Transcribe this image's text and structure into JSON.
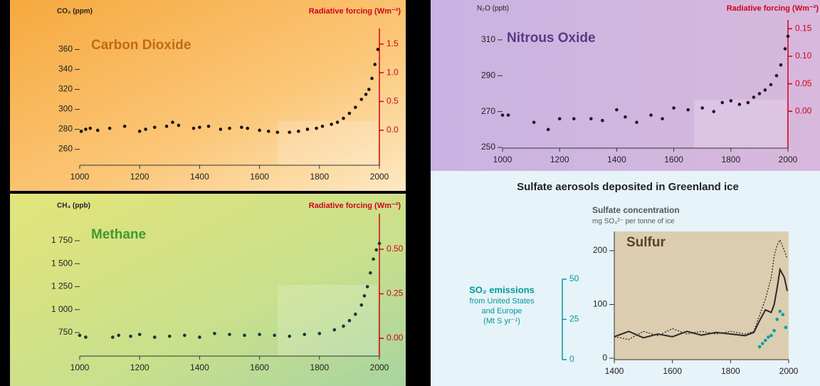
{
  "chart_data": [
    {
      "type": "scatter",
      "title": "Carbon Dioxide",
      "ylabel": "CO₂ (ppm)",
      "y2label": "Radiative forcing (Wm⁻²)",
      "xlim": [
        1000,
        2000
      ],
      "xticks": [
        1000,
        1200,
        1400,
        1600,
        1800,
        2000
      ],
      "ylim": [
        244,
        381
      ],
      "yticks": [
        260,
        280,
        300,
        320,
        340,
        360
      ],
      "y2lim": [
        -0.61,
        1.77
      ],
      "y2ticks": [
        {
          "value": 0,
          "label": "0.0"
        },
        0.5,
        {
          "value": 1,
          "label": "1.0"
        },
        1.5
      ],
      "y2color": "#d0021b",
      "series": [
        {
          "color": "#1a1010",
          "x": [
            1005,
            1020,
            1035,
            1060,
            1100,
            1150,
            1200,
            1220,
            1250,
            1290,
            1310,
            1330,
            1380,
            1400,
            1430,
            1470,
            1500,
            1540,
            1560,
            1600,
            1630,
            1660,
            1700,
            1730,
            1760,
            1790,
            1810,
            1840,
            1860,
            1880,
            1900,
            1920,
            1940,
            1955,
            1965,
            1975,
            1985,
            1995
          ],
          "values": [
            278,
            280,
            281,
            279,
            281,
            283,
            278,
            280,
            282,
            283,
            287,
            284,
            281,
            282,
            283,
            280,
            281,
            282,
            281,
            279,
            278,
            277,
            277,
            278,
            280,
            281,
            283,
            285,
            287,
            291,
            296,
            302,
            310,
            315,
            320,
            331,
            345,
            360
          ]
        }
      ]
    },
    {
      "type": "scatter",
      "title": "Methane",
      "ylabel": "CH₄ (ppb)",
      "y2label": "Radiative forcing (Wm⁻²)",
      "xlim": [
        1000,
        2000
      ],
      "xticks": [
        1000,
        1200,
        1400,
        1600,
        1800,
        2000
      ],
      "ylim": [
        494,
        2045
      ],
      "yticks": [
        750,
        {
          "value": 1000,
          "label": "1 000"
        },
        {
          "value": 1250,
          "label": "1 250"
        },
        {
          "value": 1500,
          "label": "1 500"
        },
        {
          "value": 1750,
          "label": "1 750"
        }
      ],
      "y2lim": [
        -0.1,
        0.7
      ],
      "y2ticks": [
        {
          "value": 0,
          "label": "0.00"
        },
        0.25,
        {
          "value": 0.5,
          "label": "0.50"
        }
      ],
      "y2color": "#d0021b",
      "series": [
        {
          "color": "#0b3b38",
          "x": [
            1000,
            1020,
            1110,
            1130,
            1170,
            1200,
            1250,
            1300,
            1350,
            1400,
            1450,
            1500,
            1550,
            1600,
            1650,
            1700,
            1750,
            1800,
            1850,
            1880,
            1900,
            1920,
            1940,
            1950,
            1960,
            1970,
            1980,
            1990,
            2000
          ],
          "values": [
            720,
            700,
            700,
            720,
            710,
            730,
            700,
            710,
            720,
            700,
            740,
            730,
            720,
            730,
            720,
            710,
            730,
            740,
            780,
            820,
            880,
            950,
            1050,
            1150,
            1250,
            1400,
            1550,
            1650,
            1720
          ]
        }
      ]
    },
    {
      "type": "scatter",
      "title": "Nitrous Oxide",
      "ylabel": "N₂O (ppb)",
      "y2label": "Radiative forcing (Wm⁻²)",
      "xlim": [
        1000,
        2000
      ],
      "xticks": [
        1000,
        1200,
        1400,
        1600,
        1800,
        2000
      ],
      "ylim": [
        249.6,
        321.1
      ],
      "yticks": [
        250,
        270,
        290,
        310
      ],
      "y2lim": [
        -0.067,
        0.166
      ],
      "y2ticks": [
        {
          "value": 0,
          "label": "0.00"
        },
        {
          "value": 0.05,
          "label": "0.05"
        },
        {
          "value": 0.1,
          "label": "0.10"
        },
        {
          "value": 0.15,
          "label": "0.15"
        }
      ],
      "y2color": "#d0021b",
      "series": [
        {
          "color": "#2a1030",
          "x": [
            1000,
            1020,
            1110,
            1160,
            1200,
            1250,
            1310,
            1350,
            1400,
            1430,
            1470,
            1520,
            1560,
            1600,
            1650,
            1700,
            1740,
            1770,
            1800,
            1830,
            1860,
            1880,
            1900,
            1920,
            1940,
            1960,
            1975,
            1990,
            2000
          ],
          "values": [
            268,
            268,
            264,
            260,
            266,
            266,
            266,
            265,
            271,
            267,
            264,
            268,
            266,
            272,
            271,
            272,
            270,
            275,
            276,
            274,
            275,
            278,
            280,
            282,
            285,
            290,
            296,
            305,
            312
          ]
        }
      ]
    },
    {
      "type": "line",
      "heading": "Sulfate aerosols deposited in Greenland ice",
      "title": "Sulfur",
      "ylabel": [
        "Sulfate concentration",
        "mg SO₄²⁻ per tonne of ice"
      ],
      "y2label": [
        "SO₂ emissions",
        "from United States",
        "and Europe",
        "(Mt S yr⁻¹)"
      ],
      "xlim": [
        1400,
        2000
      ],
      "xticks": [
        1400,
        1600,
        1800,
        2000
      ],
      "ylim": [
        -2.6,
        235.7
      ],
      "yticks": [
        0,
        100,
        200
      ],
      "y2lim": [
        0,
        79.6
      ],
      "y2ticks": [
        0,
        25,
        50
      ],
      "y2color": "#009a9a",
      "series": [
        {
          "color": "#2a2a2a",
          "style": "solid",
          "x": [
            1400,
            1450,
            1500,
            1550,
            1600,
            1650,
            1700,
            1750,
            1800,
            1850,
            1880,
            1900,
            1920,
            1940,
            1950,
            1960,
            1970,
            1985,
            1995
          ],
          "values": [
            40,
            50,
            38,
            45,
            40,
            50,
            43,
            48,
            45,
            42,
            48,
            70,
            90,
            85,
            100,
            130,
            165,
            150,
            125
          ]
        },
        {
          "color": "#2a2a2a",
          "style": "dotted",
          "x": [
            1400,
            1450,
            1500,
            1550,
            1600,
            1650,
            1700,
            1750,
            1800,
            1850,
            1880,
            1900,
            1920,
            1940,
            1950,
            1960,
            1970,
            1985,
            1995
          ],
          "values": [
            40,
            35,
            50,
            42,
            55,
            45,
            50,
            45,
            50,
            45,
            50,
            80,
            110,
            150,
            190,
            210,
            220,
            200,
            185
          ]
        },
        {
          "color": "#00a0a0",
          "style": "dots",
          "axis": "y2",
          "x": [
            1900,
            1910,
            1920,
            1930,
            1940,
            1950,
            1960,
            1970,
            1980,
            1990
          ],
          "values": [
            8,
            10,
            12,
            14,
            15,
            18,
            25,
            30,
            28,
            20
          ]
        }
      ]
    }
  ]
}
